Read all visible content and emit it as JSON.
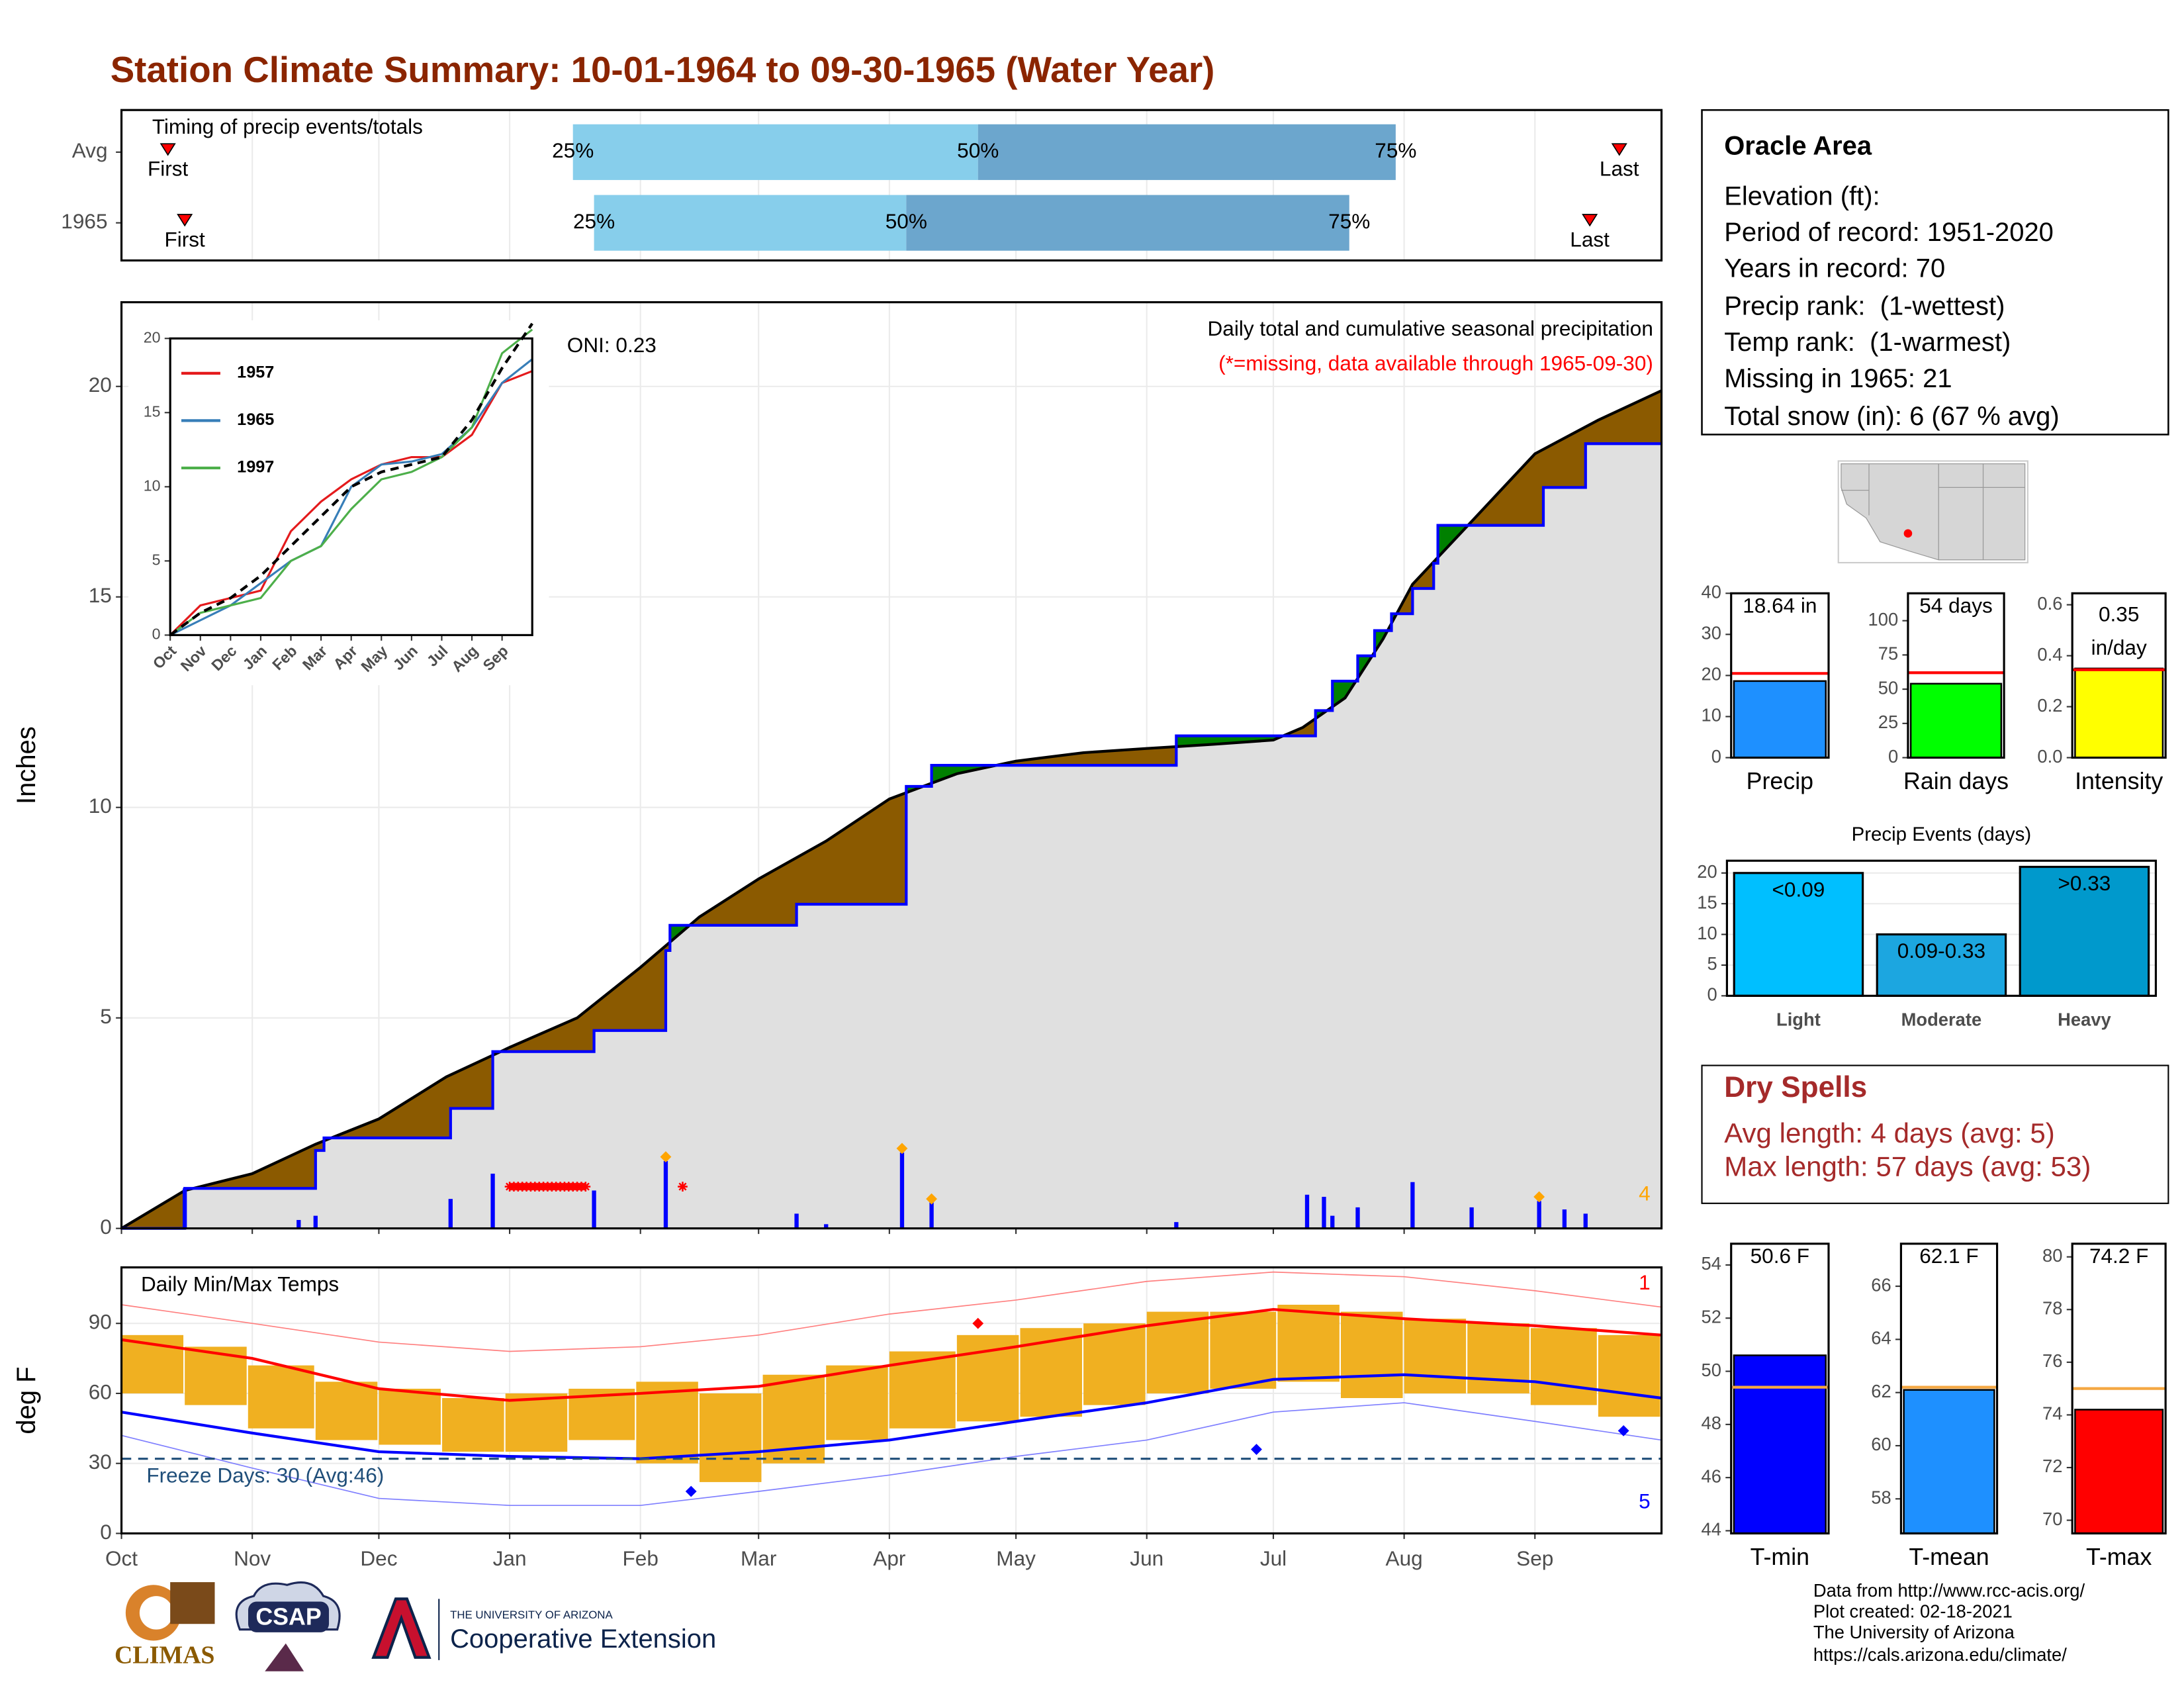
{
  "title": "Station Climate Summary: 10-01-1964 to 09-30-1965 (Water Year)",
  "info": {
    "heading": "Oracle Area",
    "lines": [
      "Elevation (ft):",
      "Period of record: 1951-2020",
      "Years in record: 70",
      "Precip rank:  (1-wettest)",
      "Temp rank:  (1-warmest)",
      "Missing in 1965: 21",
      "Total snow (in): 6 (67 % avg)"
    ]
  },
  "dry_spells": {
    "heading": "Dry Spells",
    "lines": [
      "Avg length: 4 days (avg: 5)",
      "Max length: 57 days (avg: 53)"
    ]
  },
  "credits": [
    "Data from http://www.rcc-acis.org/",
    "Plot created: 02-18-2021",
    "The University of Arizona",
    "https://cals.arizona.edu/climate/"
  ],
  "logos": {
    "climas": "CLIMAS",
    "csap": "CSAP",
    "university": "THE UNIVERSITY OF ARIZONA",
    "extension": "Cooperative Extension"
  },
  "chart_data": [
    {
      "type": "timing",
      "title": "Timing of precip events/totals",
      "xlim": [
        0,
        365
      ],
      "xticks": [
        0,
        31,
        61,
        92,
        123,
        151,
        182,
        212,
        243,
        273,
        304,
        335
      ],
      "labels": {
        "first": "First",
        "p25": "25%",
        "p50": "50%",
        "p75": "75%",
        "last": "Last"
      },
      "colors": {
        "early": "#87ceeb",
        "late": "#6ca6cd",
        "marker": "#ff0000"
      },
      "rows": [
        {
          "name": "Avg",
          "first": 11,
          "p25": 107,
          "p50": 203,
          "p75": 302,
          "last": 355
        },
        {
          "name": "1965",
          "first": 15,
          "p25": 112,
          "p50": 186,
          "p75": 291,
          "last": 348
        }
      ]
    },
    {
      "type": "cumulative",
      "ylabel": "Inches",
      "xlim": [
        0,
        365
      ],
      "ylim": [
        0,
        22
      ],
      "yticks": [
        0,
        5,
        10,
        15,
        20
      ],
      "xticks": [
        0,
        31,
        61,
        92,
        123,
        151,
        182,
        212,
        243,
        273,
        304,
        335
      ],
      "grid": true,
      "annotations": {
        "oni": "ONI: 0.23",
        "heading": "Daily total and cumulative seasonal precipitation",
        "note": "(*=missing, data available through 1965-09-30)",
        "count": "4"
      },
      "fill_colors": {
        "below": "#8b5a00",
        "above": "#008000",
        "base": "#e0e0e0"
      },
      "series": [
        {
          "color": "#000000",
          "x": [
            0,
            15,
            31,
            46,
            61,
            77,
            92,
            108,
            123,
            137,
            151,
            167,
            182,
            198,
            212,
            228,
            243,
            259,
            273,
            280,
            290,
            299,
            306,
            321,
            335,
            350,
            365
          ],
          "values": [
            0,
            0.9,
            1.3,
            2.0,
            2.6,
            3.6,
            4.3,
            5.0,
            6.2,
            7.4,
            8.3,
            9.2,
            10.2,
            10.8,
            11.1,
            11.3,
            11.4,
            11.5,
            11.6,
            11.9,
            12.6,
            14.0,
            15.3,
            16.9,
            18.4,
            19.2,
            19.9
          ]
        },
        {
          "color": "#0000ff",
          "step": true,
          "x": [
            0,
            15,
            46,
            48,
            78,
            88,
            112,
            129,
            130,
            160,
            186,
            192,
            250,
            283,
            287,
            293,
            297,
            301,
            306,
            311,
            312,
            337,
            347,
            365
          ],
          "values": [
            0,
            0.95,
            1.85,
            2.15,
            2.85,
            4.2,
            4.7,
            6.6,
            7.2,
            7.7,
            10.5,
            11.0,
            11.7,
            12.3,
            13.0,
            13.6,
            14.2,
            14.6,
            15.2,
            15.8,
            16.7,
            17.6,
            18.64,
            18.64
          ]
        }
      ],
      "daily": {
        "color": "#0000ff",
        "x": [
          15,
          42,
          46,
          78,
          88,
          112,
          129,
          160,
          167,
          185,
          192,
          250,
          281,
          285,
          287,
          293,
          306,
          320,
          336,
          342,
          347
        ],
        "values": [
          0.95,
          0.2,
          0.3,
          0.7,
          1.3,
          0.9,
          1.6,
          0.35,
          0.1,
          1.8,
          0.75,
          0.15,
          0.8,
          0.75,
          0.3,
          0.5,
          1.1,
          0.5,
          0.65,
          0.45,
          0.35
        ]
      },
      "markers": {
        "color": "#ffa500",
        "x": [
          129,
          185,
          192,
          336
        ],
        "values": [
          1.7,
          1.9,
          0.7,
          0.75
        ]
      },
      "missing": {
        "color": "#ff0000",
        "x": [
          92,
          93,
          94,
          95,
          96,
          97,
          98,
          99,
          100,
          101,
          102,
          103,
          104,
          105,
          106,
          107,
          108,
          109,
          110,
          133
        ]
      }
    },
    {
      "type": "line",
      "xlim": [
        0,
        12
      ],
      "ylim": [
        0,
        20
      ],
      "yticks": [
        0,
        5,
        10,
        15,
        20
      ],
      "xticks": [
        {
          "value": 0,
          "label": "Oct"
        },
        {
          "value": 1,
          "label": "Nov"
        },
        {
          "value": 2,
          "label": "Dec"
        },
        {
          "value": 3,
          "label": "Jan"
        },
        {
          "value": 4,
          "label": "Feb"
        },
        {
          "value": 5,
          "label": "Mar"
        },
        {
          "value": 6,
          "label": "Apr"
        },
        {
          "value": 7,
          "label": "May"
        },
        {
          "value": 8,
          "label": "Jun"
        },
        {
          "value": 9,
          "label": "Jul"
        },
        {
          "value": 10,
          "label": "Aug"
        },
        {
          "value": 11,
          "label": "Sep"
        }
      ],
      "x": [
        0,
        1,
        2,
        3,
        4,
        5,
        6,
        7,
        8,
        9,
        10,
        11,
        12
      ],
      "series": [
        {
          "name": "1957",
          "color": "#e41a1c",
          "values": [
            0,
            2,
            2.5,
            3,
            7,
            9,
            10.5,
            11.5,
            12,
            12,
            13.5,
            17,
            17.8
          ]
        },
        {
          "name": "1965",
          "color": "#377eb8",
          "values": [
            0,
            1,
            2,
            3.5,
            5,
            6,
            10,
            11.5,
            11.7,
            12.2,
            14,
            17,
            18.6
          ]
        },
        {
          "name": "1997",
          "color": "#4daf4a",
          "values": [
            0,
            1.5,
            2,
            2.5,
            5,
            6,
            8.5,
            10.5,
            11,
            12,
            14,
            19,
            20.6
          ]
        },
        {
          "color": "#000000",
          "dashed": true,
          "values": [
            0,
            1.5,
            2.5,
            4,
            6,
            8,
            10,
            11,
            11.5,
            12,
            14.5,
            18,
            21
          ]
        }
      ]
    },
    {
      "type": "temperature",
      "title": "Daily Min/Max Temps",
      "ylabel": "deg F",
      "xlim": [
        0,
        365
      ],
      "ylim": [
        0,
        114
      ],
      "yticks": [
        0,
        30,
        60,
        90
      ],
      "grid": true,
      "xticks": [
        {
          "value": 0,
          "label": "Oct"
        },
        {
          "value": 31,
          "label": "Nov"
        },
        {
          "value": 61,
          "label": "Dec"
        },
        {
          "value": 92,
          "label": "Jan"
        },
        {
          "value": 123,
          "label": "Feb"
        },
        {
          "value": 151,
          "label": "Mar"
        },
        {
          "value": 182,
          "label": "Apr"
        },
        {
          "value": 212,
          "label": "May"
        },
        {
          "value": 243,
          "label": "Jun"
        },
        {
          "value": 273,
          "label": "Jul"
        },
        {
          "value": 304,
          "label": "Aug"
        },
        {
          "value": 335,
          "label": "Sep"
        }
      ],
      "range": {
        "color": "#f0b021",
        "x": [
          0,
          15,
          30,
          46,
          61,
          76,
          91,
          106,
          122,
          137,
          152,
          167,
          182,
          198,
          213,
          228,
          243,
          258,
          274,
          289,
          304,
          319,
          334,
          350
        ],
        "low": [
          60,
          55,
          45,
          40,
          38,
          35,
          35,
          40,
          30,
          22,
          30,
          40,
          45,
          48,
          50,
          55,
          60,
          62,
          65,
          58,
          60,
          60,
          55,
          50
        ],
        "high": [
          85,
          80,
          72,
          65,
          62,
          58,
          60,
          62,
          65,
          60,
          68,
          72,
          78,
          85,
          88,
          90,
          95,
          95,
          98,
          95,
          92,
          90,
          88,
          85
        ]
      },
      "x": [
        0,
        31,
        61,
        92,
        123,
        151,
        182,
        212,
        243,
        273,
        304,
        335,
        365
      ],
      "series": [
        {
          "color": "#ff7f7f",
          "line_width": 0.8,
          "values": [
            98,
            90,
            82,
            78,
            80,
            85,
            94,
            100,
            108,
            112,
            110,
            104,
            97
          ]
        },
        {
          "color": "#ff0000",
          "line_width": 2,
          "values": [
            83,
            75,
            62,
            57,
            60,
            63,
            72,
            80,
            89,
            96,
            92,
            89,
            85
          ]
        },
        {
          "color": "#0000ff",
          "line_width": 2,
          "values": [
            52,
            43,
            35,
            33,
            32,
            35,
            40,
            48,
            56,
            66,
            68,
            65,
            58
          ]
        },
        {
          "color": "#7f7fff",
          "line_width": 0.8,
          "values": [
            42,
            28,
            15,
            12,
            12,
            18,
            25,
            33,
            40,
            52,
            56,
            48,
            40
          ]
        }
      ],
      "markers": {
        "x": [
          203,
          135,
          269,
          356
        ],
        "values": [
          90,
          18,
          36,
          44
        ],
        "colors": [
          "#ff0000",
          "#0000ff",
          "#0000ff",
          "#0000ff"
        ]
      },
      "freeze": {
        "value": 32,
        "label": "Freeze Days: 30 (Avg:46)",
        "color": "#1f4e79"
      },
      "annotations": [
        {
          "text": "1",
          "color": "#ff0000"
        },
        {
          "text": "5",
          "color": "#0000ff"
        }
      ]
    },
    {
      "type": "bar",
      "categories": [
        "Precip"
      ],
      "values": [
        18.64
      ],
      "value_labels": [
        "18.64 in"
      ],
      "color": "#1e90ff",
      "reference": 20.5,
      "reference_color": "#ff0000",
      "ylim": [
        0,
        40
      ],
      "yticks": [
        0,
        10,
        20,
        30,
        40
      ]
    },
    {
      "type": "bar",
      "categories": [
        "Rain days"
      ],
      "values": [
        54
      ],
      "value_labels": [
        "54 days"
      ],
      "color": "#00ff00",
      "reference": 62,
      "reference_color": "#ff0000",
      "ylim": [
        0,
        120
      ],
      "yticks": [
        0,
        25,
        50,
        75,
        100
      ]
    },
    {
      "type": "bar",
      "categories": [
        "Intensity"
      ],
      "values": [
        0.35
      ],
      "unit": "in/day",
      "color": "#ffff00",
      "reference": 0.345,
      "reference_color": "#ff0000",
      "ylim": [
        0,
        0.645
      ],
      "yticks": [
        {
          "value": 0,
          "label": "0.0"
        },
        {
          "value": 0.2,
          "label": "0.2"
        },
        {
          "value": 0.4,
          "label": "0.4"
        },
        {
          "value": 0.6,
          "label": "0.6"
        }
      ]
    },
    {
      "type": "events",
      "title": "Precip Events (days)",
      "categories": [
        "Light",
        "Moderate",
        "Heavy"
      ],
      "values": [
        20,
        10,
        21
      ],
      "bar_labels": [
        "<0.09",
        "0.09-0.33",
        ">0.33"
      ],
      "colors": [
        "#00bfff",
        "#1ca6e0",
        "#0099cc"
      ],
      "ylim": [
        0,
        22
      ],
      "yticks": [
        0,
        5,
        10,
        15,
        20
      ],
      "grid": true
    },
    {
      "type": "bar",
      "categories": [
        "T-min"
      ],
      "values": [
        50.6
      ],
      "value_labels": [
        "50.6 F"
      ],
      "color": "#0000ff",
      "reference": 49.4,
      "reference_color": "#f4a742",
      "ylim": [
        43.9,
        54.8
      ],
      "yticks": [
        44,
        46,
        48,
        50,
        52,
        54
      ]
    },
    {
      "type": "bar",
      "categories": [
        "T-mean"
      ],
      "values": [
        62.1
      ],
      "value_labels": [
        "62.1 F"
      ],
      "color": "#1e90ff",
      "reference": 62.2,
      "reference_color": "#f4a742",
      "ylim": [
        56.7,
        67.6
      ],
      "yticks": [
        58,
        60,
        62,
        64,
        66
      ]
    },
    {
      "type": "bar",
      "categories": [
        "T-max"
      ],
      "values": [
        74.2
      ],
      "value_labels": [
        "74.2 F"
      ],
      "color": "#ff0000",
      "reference": 75.0,
      "reference_color": "#f4a742",
      "ylim": [
        69.5,
        80.5
      ],
      "yticks": [
        70,
        72,
        74,
        76,
        78,
        80
      ]
    }
  ]
}
